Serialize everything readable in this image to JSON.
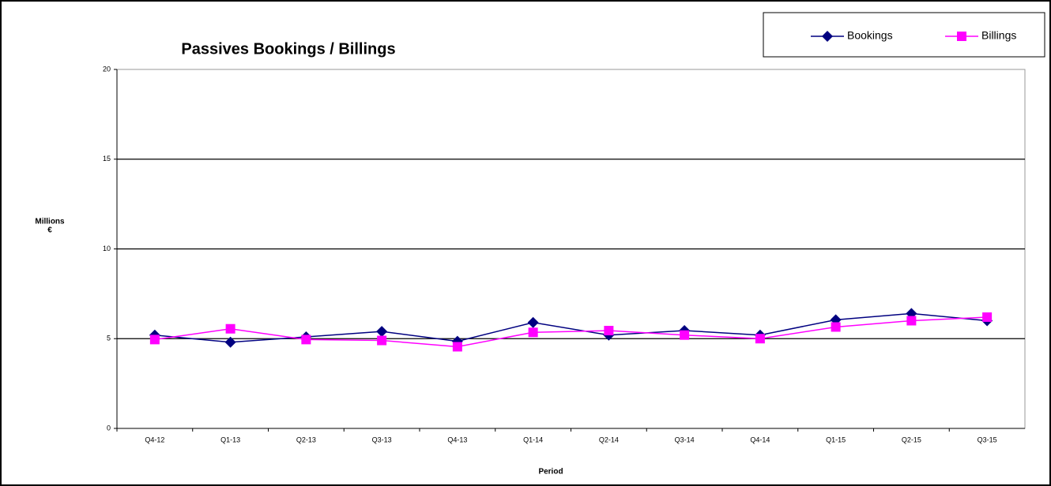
{
  "chart_data": {
    "type": "line",
    "title": "Passives Bookings / Billings",
    "y_label": [
      "Millions",
      "€"
    ],
    "x_label": "Period",
    "categories": [
      "Q4-12",
      "Q1-13",
      "Q2-13",
      "Q3-13",
      "Q4-13",
      "Q1-14",
      "Q2-14",
      "Q3-14",
      "Q4-14",
      "Q1-15",
      "Q2-15",
      "Q3-15"
    ],
    "series": [
      {
        "name": "Bookings",
        "color": "#000080",
        "marker": "diamond",
        "values": [
          5.2,
          4.8,
          5.1,
          5.4,
          4.85,
          5.9,
          5.2,
          5.45,
          5.2,
          6.05,
          6.4,
          6.0
        ]
      },
      {
        "name": "Billings",
        "color": "#ff00ff",
        "marker": "square",
        "values": [
          4.95,
          5.55,
          4.95,
          4.9,
          4.55,
          5.35,
          5.45,
          5.2,
          5.0,
          5.65,
          6.0,
          6.2
        ]
      }
    ],
    "ylim": [
      0,
      20
    ],
    "yticks": [
      0,
      5,
      10,
      15,
      20
    ],
    "grid": true,
    "legend": "top-right"
  }
}
